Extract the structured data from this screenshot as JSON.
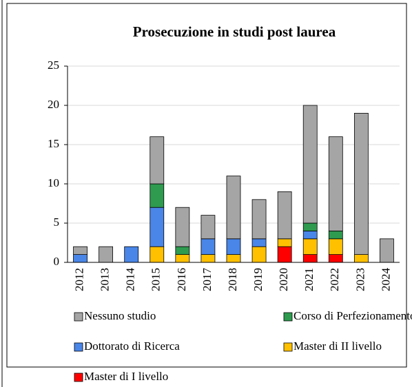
{
  "chart_data": {
    "type": "bar",
    "stacked": true,
    "title": "Prosecuzione in studi post laurea",
    "categories": [
      "2012",
      "2013",
      "2014",
      "2015",
      "2016",
      "2017",
      "2018",
      "2019",
      "2020",
      "2021",
      "2022",
      "2023",
      "2024"
    ],
    "series": [
      {
        "name": "Master di I livello",
        "color": "#ff0000",
        "values": [
          0,
          0,
          0,
          0,
          0,
          0,
          0,
          0,
          2,
          1,
          1,
          0,
          0
        ]
      },
      {
        "name": "Master di II livello",
        "color": "#ffc000",
        "values": [
          0,
          0,
          0,
          2,
          1,
          1,
          1,
          2,
          1,
          2,
          2,
          1,
          0
        ]
      },
      {
        "name": "Dottorato di Ricerca",
        "color": "#4a86e8",
        "values": [
          1,
          0,
          2,
          5,
          0,
          2,
          2,
          1,
          0,
          1,
          0,
          0,
          0
        ]
      },
      {
        "name": "Corso di Perfezionamento",
        "color": "#2e9b4f",
        "values": [
          0,
          0,
          0,
          3,
          1,
          0,
          0,
          0,
          0,
          1,
          1,
          0,
          0
        ]
      },
      {
        "name": "Nessuno studio",
        "color": "#a5a5a5",
        "values": [
          1,
          2,
          0,
          6,
          5,
          3,
          8,
          5,
          6,
          15,
          12,
          18,
          3
        ]
      }
    ],
    "ylim": [
      0,
      25
    ],
    "yticks": [
      0,
      5,
      10,
      15,
      20,
      25
    ],
    "grid": true,
    "legend": "bottom"
  }
}
